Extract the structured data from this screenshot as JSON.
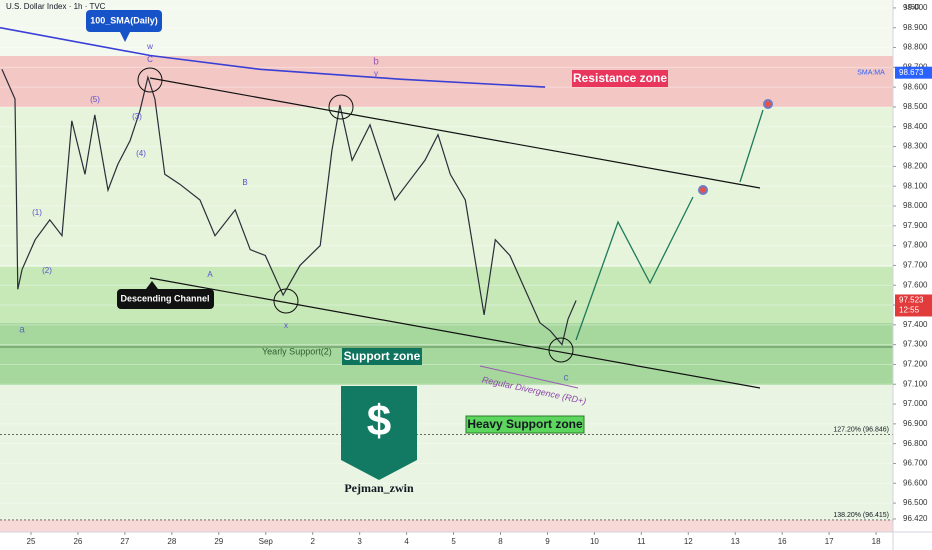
{
  "chart_data": {
    "type": "line",
    "title": "U.S. Dollar Index · 1h · TVC",
    "currency": "USD",
    "xlim": [
      -0.66,
      18.36
    ],
    "xticks": [
      {
        "value": 0,
        "label": "25"
      },
      {
        "value": 1,
        "label": "26"
      },
      {
        "value": 2,
        "label": "27"
      },
      {
        "value": 3,
        "label": "28"
      },
      {
        "value": 4,
        "label": "29"
      },
      {
        "value": 5,
        "label": "Sep"
      },
      {
        "value": 6,
        "label": "2"
      },
      {
        "value": 7,
        "label": "3"
      },
      {
        "value": 8,
        "label": "4"
      },
      {
        "value": 9,
        "label": "5"
      },
      {
        "value": 10,
        "label": "8"
      },
      {
        "value": 11,
        "label": "9"
      },
      {
        "value": 12,
        "label": "10"
      },
      {
        "value": 13,
        "label": "11"
      },
      {
        "value": 14,
        "label": "12"
      },
      {
        "value": 15,
        "label": "13"
      },
      {
        "value": 16,
        "label": "16"
      },
      {
        "value": 17,
        "label": "17"
      },
      {
        "value": 18,
        "label": "18"
      }
    ],
    "ylim": [
      96.354,
      99.04
    ],
    "yticks": [
      {
        "value": 96.42,
        "label": "96.420"
      },
      {
        "value": 96.5,
        "label": "96.500"
      },
      {
        "value": 96.6,
        "label": "96.600"
      },
      {
        "value": 96.7,
        "label": "96.700"
      },
      {
        "value": 96.8,
        "label": "96.800"
      },
      {
        "value": 96.9,
        "label": "96.900"
      },
      {
        "value": 97.0,
        "label": "97.000"
      },
      {
        "value": 97.1,
        "label": "97.100"
      },
      {
        "value": 97.2,
        "label": "97.200"
      },
      {
        "value": 97.3,
        "label": "97.300"
      },
      {
        "value": 97.4,
        "label": "97.400"
      },
      {
        "value": 97.5,
        "label": "97.500"
      },
      {
        "value": 97.6,
        "label": "97.600"
      },
      {
        "value": 97.7,
        "label": "97.700"
      },
      {
        "value": 97.8,
        "label": "97.800"
      },
      {
        "value": 97.9,
        "label": "97.900"
      },
      {
        "value": 98.0,
        "label": "98.000"
      },
      {
        "value": 98.1,
        "label": "98.100"
      },
      {
        "value": 98.2,
        "label": "98.200"
      },
      {
        "value": 98.3,
        "label": "98.300"
      },
      {
        "value": 98.4,
        "label": "98.400"
      },
      {
        "value": 98.5,
        "label": "98.500"
      },
      {
        "value": 98.6,
        "label": "98.600"
      },
      {
        "value": 98.7,
        "label": "98.700"
      },
      {
        "value": 98.8,
        "label": "98.800"
      },
      {
        "value": 98.9,
        "label": "98.900"
      },
      {
        "value": 99.0,
        "label": "99.000"
      }
    ],
    "series": [
      {
        "name": "U.S. Dollar Index",
        "color": "#2a2e39",
        "x": [
          -0.62,
          -0.34,
          -0.28,
          -0.19,
          0.09,
          0.4,
          0.66,
          0.87,
          1.15,
          1.36,
          1.64,
          1.85,
          2.11,
          2.32,
          2.49,
          2.64,
          2.85,
          3.17,
          3.6,
          3.92,
          4.35,
          4.67,
          4.99,
          5.37,
          5.73,
          6.16,
          6.41,
          6.58,
          6.84,
          7.22,
          7.54,
          7.75,
          8.07,
          8.39,
          8.67,
          8.93,
          9.25,
          9.65,
          9.89,
          10.2,
          10.52,
          10.84,
          11.06,
          11.31,
          11.44,
          11.61
        ],
        "values": [
          98.69,
          98.54,
          97.58,
          97.68,
          97.83,
          97.93,
          97.85,
          98.43,
          98.16,
          98.46,
          98.08,
          98.21,
          98.33,
          98.48,
          98.65,
          98.54,
          98.16,
          98.11,
          98.03,
          97.85,
          97.98,
          97.78,
          97.75,
          97.55,
          97.7,
          97.8,
          98.28,
          98.51,
          98.23,
          98.41,
          98.18,
          98.03,
          98.13,
          98.23,
          98.36,
          98.16,
          98.03,
          97.45,
          97.83,
          97.75,
          97.58,
          97.41,
          97.37,
          97.3,
          97.43,
          97.523
        ]
      },
      {
        "name": "SMA:MA",
        "color": "#3a3fd6",
        "x": [
          -0.66,
          2.54,
          4.88,
          7.86,
          10.95
        ],
        "values": [
          98.9,
          98.76,
          98.69,
          98.64,
          98.6
        ]
      }
    ],
    "sma_last": 98.673,
    "last_price": 97.523,
    "countdown": "12:55",
    "fib_levels": [
      {
        "value": 96.846,
        "label": "127.20% (96.846)"
      },
      {
        "value": 96.415,
        "label": "138.20% (96.415)"
      }
    ],
    "annotations": {
      "resistance": "Resistance zone",
      "support": "Support zone",
      "heavy_support": "Heavy Support zone",
      "channel": "Descending Channel",
      "sma": "100_SMA(Daily)",
      "yearly": "Yearly Support(2)",
      "divergence": "Regular Divergence (RD+)",
      "author": "Pejman_zwin",
      "logo": "$"
    },
    "waves": [
      "a",
      "b",
      "c",
      "y",
      "w",
      "x",
      "(1)",
      "(2)",
      "(3)",
      "(4)",
      "(5)",
      "A",
      "B",
      "C"
    ]
  }
}
